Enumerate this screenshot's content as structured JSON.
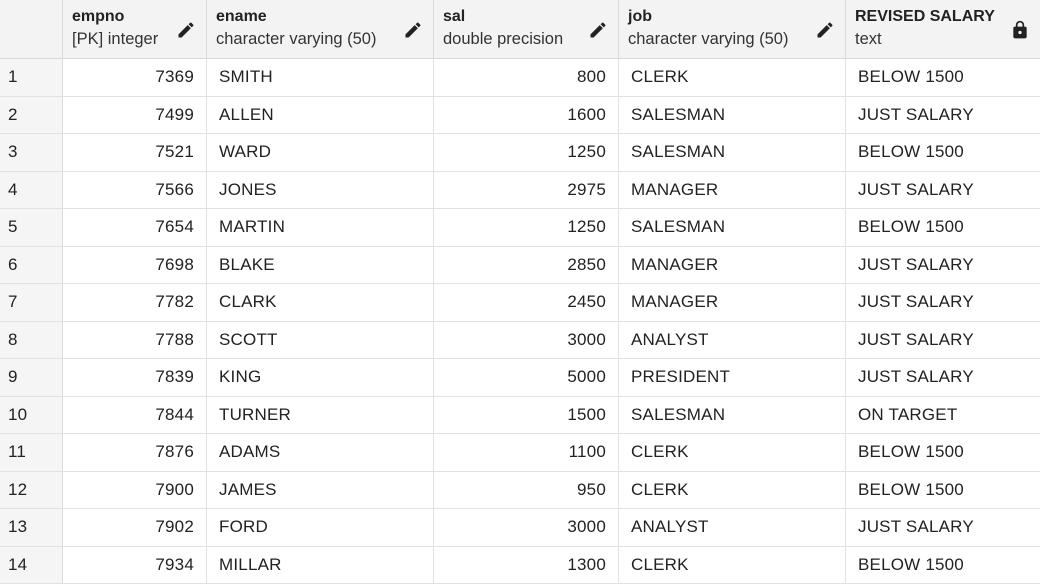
{
  "columns": [
    {
      "name": "empno",
      "type": "[PK] integer",
      "icon": "pencil-icon"
    },
    {
      "name": "ename",
      "type": "character varying (50)",
      "icon": "pencil-icon"
    },
    {
      "name": "sal",
      "type": "double precision",
      "icon": "pencil-icon"
    },
    {
      "name": "job",
      "type": "character varying (50)",
      "icon": "pencil-icon"
    },
    {
      "name": "REVISED SALARY",
      "type": "text",
      "icon": "lock-icon"
    }
  ],
  "rows": [
    {
      "n": "1",
      "empno": "7369",
      "ename": "SMITH",
      "sal": "800",
      "job": "CLERK",
      "revised": "BELOW 1500"
    },
    {
      "n": "2",
      "empno": "7499",
      "ename": "ALLEN",
      "sal": "1600",
      "job": "SALESMAN",
      "revised": "JUST SALARY"
    },
    {
      "n": "3",
      "empno": "7521",
      "ename": "WARD",
      "sal": "1250",
      "job": "SALESMAN",
      "revised": "BELOW 1500"
    },
    {
      "n": "4",
      "empno": "7566",
      "ename": "JONES",
      "sal": "2975",
      "job": "MANAGER",
      "revised": "JUST SALARY"
    },
    {
      "n": "5",
      "empno": "7654",
      "ename": "MARTIN",
      "sal": "1250",
      "job": "SALESMAN",
      "revised": "BELOW 1500"
    },
    {
      "n": "6",
      "empno": "7698",
      "ename": "BLAKE",
      "sal": "2850",
      "job": "MANAGER",
      "revised": "JUST SALARY"
    },
    {
      "n": "7",
      "empno": "7782",
      "ename": "CLARK",
      "sal": "2450",
      "job": "MANAGER",
      "revised": "JUST SALARY"
    },
    {
      "n": "8",
      "empno": "7788",
      "ename": "SCOTT",
      "sal": "3000",
      "job": "ANALYST",
      "revised": "JUST SALARY"
    },
    {
      "n": "9",
      "empno": "7839",
      "ename": "KING",
      "sal": "5000",
      "job": "PRESIDENT",
      "revised": "JUST SALARY"
    },
    {
      "n": "10",
      "empno": "7844",
      "ename": "TURNER",
      "sal": "1500",
      "job": "SALESMAN",
      "revised": "ON TARGET"
    },
    {
      "n": "11",
      "empno": "7876",
      "ename": "ADAMS",
      "sal": "1100",
      "job": "CLERK",
      "revised": "BELOW 1500"
    },
    {
      "n": "12",
      "empno": "7900",
      "ename": "JAMES",
      "sal": "950",
      "job": "CLERK",
      "revised": "BELOW 1500"
    },
    {
      "n": "13",
      "empno": "7902",
      "ename": "FORD",
      "sal": "3000",
      "job": "ANALYST",
      "revised": "JUST SALARY"
    },
    {
      "n": "14",
      "empno": "7934",
      "ename": "MILLAR",
      "sal": "1300",
      "job": "CLERK",
      "revised": "BELOW 1500"
    }
  ]
}
